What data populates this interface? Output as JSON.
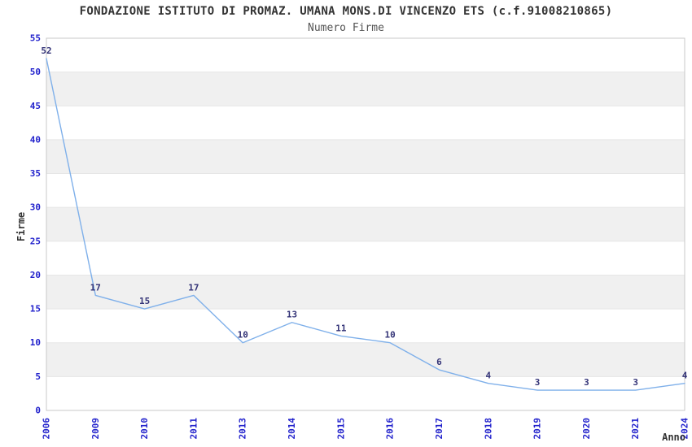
{
  "chart_data": {
    "type": "line",
    "title": "FONDAZIONE ISTITUTO DI PROMAZ. UMANA MONS.DI VINCENZO ETS (c.f.91008210865)",
    "subtitle": "Numero Firme",
    "xlabel": "Anno",
    "ylabel": "Firme",
    "categories": [
      "2006",
      "2009",
      "2010",
      "2011",
      "2013",
      "2014",
      "2015",
      "2016",
      "2017",
      "2018",
      "2019",
      "2020",
      "2021",
      "2024"
    ],
    "values": [
      52,
      17,
      15,
      17,
      10,
      13,
      11,
      10,
      6,
      4,
      3,
      3,
      3,
      4
    ],
    "ylim": [
      0,
      55
    ],
    "ytick_step": 5,
    "grid": "horizontal-bands",
    "band_starts": [
      5,
      15,
      25,
      35,
      45
    ],
    "band_height": 5,
    "legend": "none",
    "colors": {
      "line": "#7fb0ea",
      "tick_label": "#2222cc",
      "point_label": "#333377",
      "band": "#f0f0f0",
      "gridline": "#e6e6e6",
      "plot_border": "#c9c9c9",
      "title": "#333333",
      "subtitle": "#555555",
      "axis_title": "#333333"
    }
  }
}
